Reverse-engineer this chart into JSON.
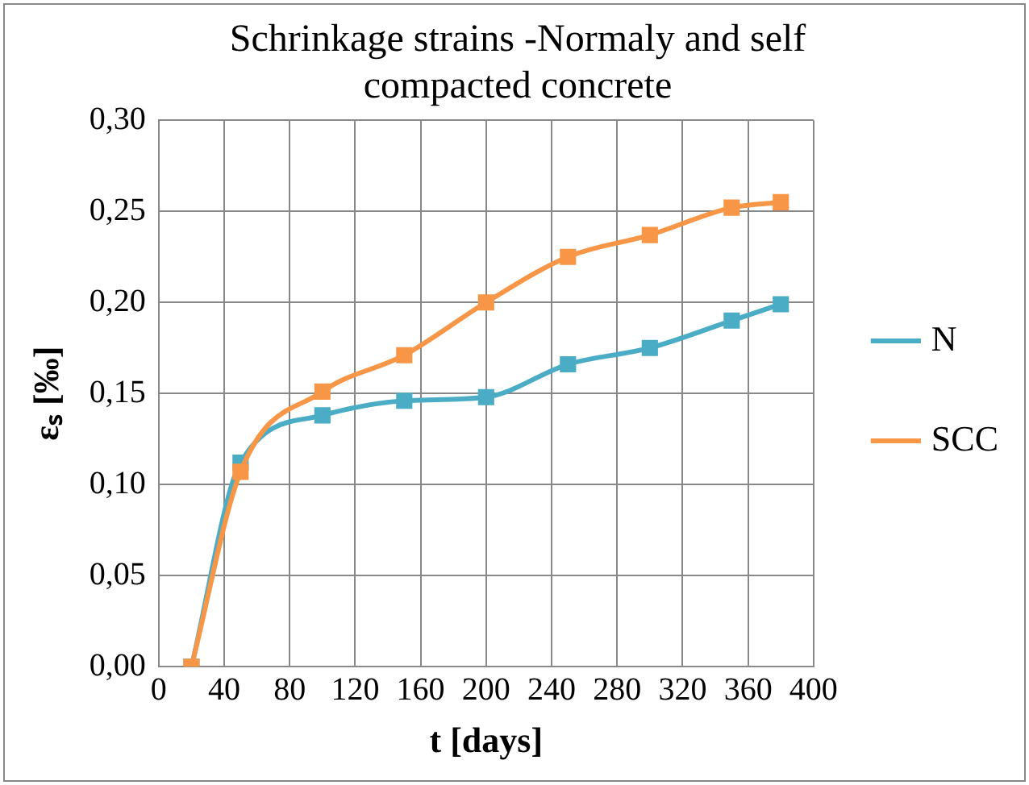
{
  "chart_data": {
    "type": "line",
    "title": "Schrinkage strains -Normaly and self compacted concrete",
    "xlabel": "t [days]",
    "ylabel": "εₛ [‰]",
    "xlim": [
      0,
      400
    ],
    "xticks": [
      0,
      40,
      80,
      120,
      160,
      200,
      240,
      280,
      320,
      360,
      400
    ],
    "ylim": [
      0,
      0.3
    ],
    "yticks": [
      {
        "value": 0,
        "label": "0,00"
      },
      {
        "value": 0.05,
        "label": "0,05"
      },
      {
        "value": 0.1,
        "label": "0,10"
      },
      {
        "value": 0.15,
        "label": "0,15"
      },
      {
        "value": 0.2,
        "label": "0,20"
      },
      {
        "value": 0.25,
        "label": "0,25"
      },
      {
        "value": 0.3,
        "label": "0,30"
      }
    ],
    "x": [
      20,
      50,
      100,
      150,
      200,
      250,
      300,
      350,
      380
    ],
    "series": [
      {
        "name": "N",
        "color": "#4bacc6",
        "values": [
          0,
          0.112,
          0.138,
          0.146,
          0.148,
          0.166,
          0.175,
          0.19,
          0.199
        ]
      },
      {
        "name": "SCC",
        "color": "#f79646",
        "values": [
          0,
          0.107,
          0.151,
          0.171,
          0.2,
          0.225,
          0.237,
          0.252,
          0.255
        ]
      }
    ],
    "grid": true,
    "legend": "right",
    "marker": "square",
    "line_style": "solid"
  }
}
